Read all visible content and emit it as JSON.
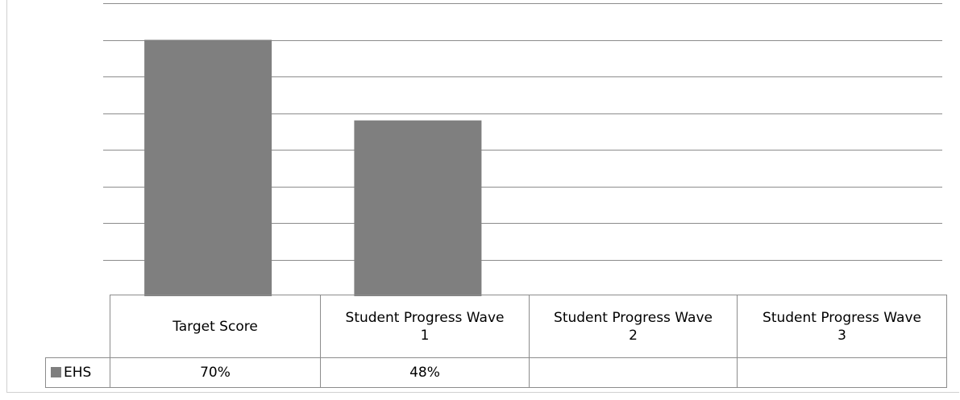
{
  "chart_data": {
    "type": "bar",
    "categories": [
      "Target Score",
      "Student Progress Wave\n1",
      "Student Progress Wave\n2",
      "Student Progress Wave\n3"
    ],
    "series": [
      {
        "name": "EHS",
        "values": [
          70,
          48,
          null,
          null
        ],
        "labels": [
          "70%",
          "48%",
          "",
          ""
        ]
      }
    ],
    "ylim": [
      0,
      80
    ],
    "grid": true,
    "legend": "data-table",
    "colors": {
      "series": "#7f7f7f",
      "gridline": "#8c8c8c"
    }
  }
}
